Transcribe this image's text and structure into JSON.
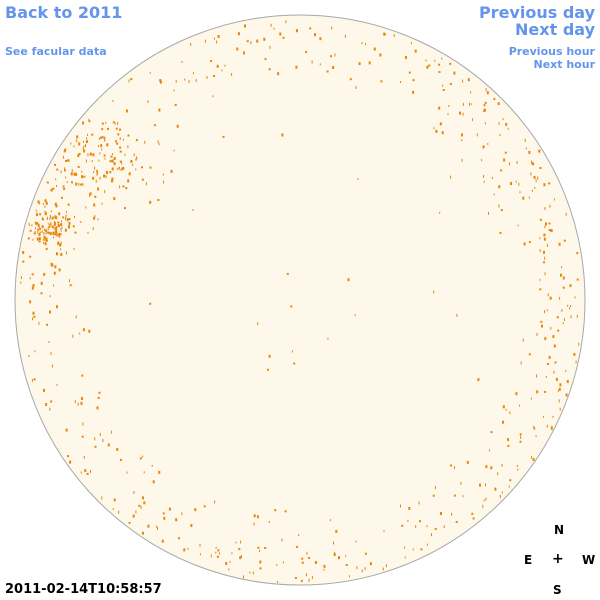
{
  "nav": {
    "back_label": "Back to 2011",
    "facular_label": "See facular data",
    "prev_day_label": "Previous day",
    "next_day_label": "Next day",
    "prev_hour_label": "Previous hour",
    "next_hour_label": "Next hour"
  },
  "compass": {
    "north": "N",
    "south": "S",
    "east": "E",
    "west": "W",
    "center": "+"
  },
  "timestamp": "2011-02-14T10:58:57",
  "colors": {
    "disk_fill": "#fdf8ea",
    "disk_stroke": "#a8a8a8",
    "facula": "#e8860a",
    "link": "#6495ed"
  }
}
